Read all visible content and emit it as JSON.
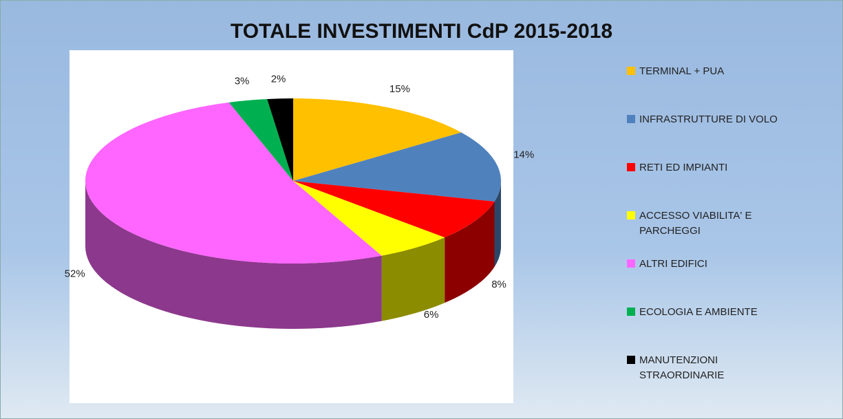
{
  "chart_data": {
    "type": "pie3d",
    "title": "TOTALE INVESTIMENTI CdP 2015-2018",
    "categories": [
      "TERMINAL + PUA",
      "INFRASTRUTTURE DI VOLO",
      "RETI ED IMPIANTI",
      "ACCESSO VIABILITA' E PARCHEGGI",
      "ALTRI EDIFICI",
      "ECOLOGIA E AMBIENTE",
      "MANUTENZIONI STRAORDINARIE"
    ],
    "values": [
      15,
      14,
      8,
      6,
      52,
      3,
      2
    ],
    "value_labels": [
      "15%",
      "14%",
      "8%",
      "6%",
      "52%",
      "3%",
      "2%"
    ],
    "colors": [
      "#ffc000",
      "#4f81bd",
      "#ff0000",
      "#ffff00",
      "#ff66ff",
      "#00b050",
      "#000000"
    ],
    "legend": "right"
  }
}
